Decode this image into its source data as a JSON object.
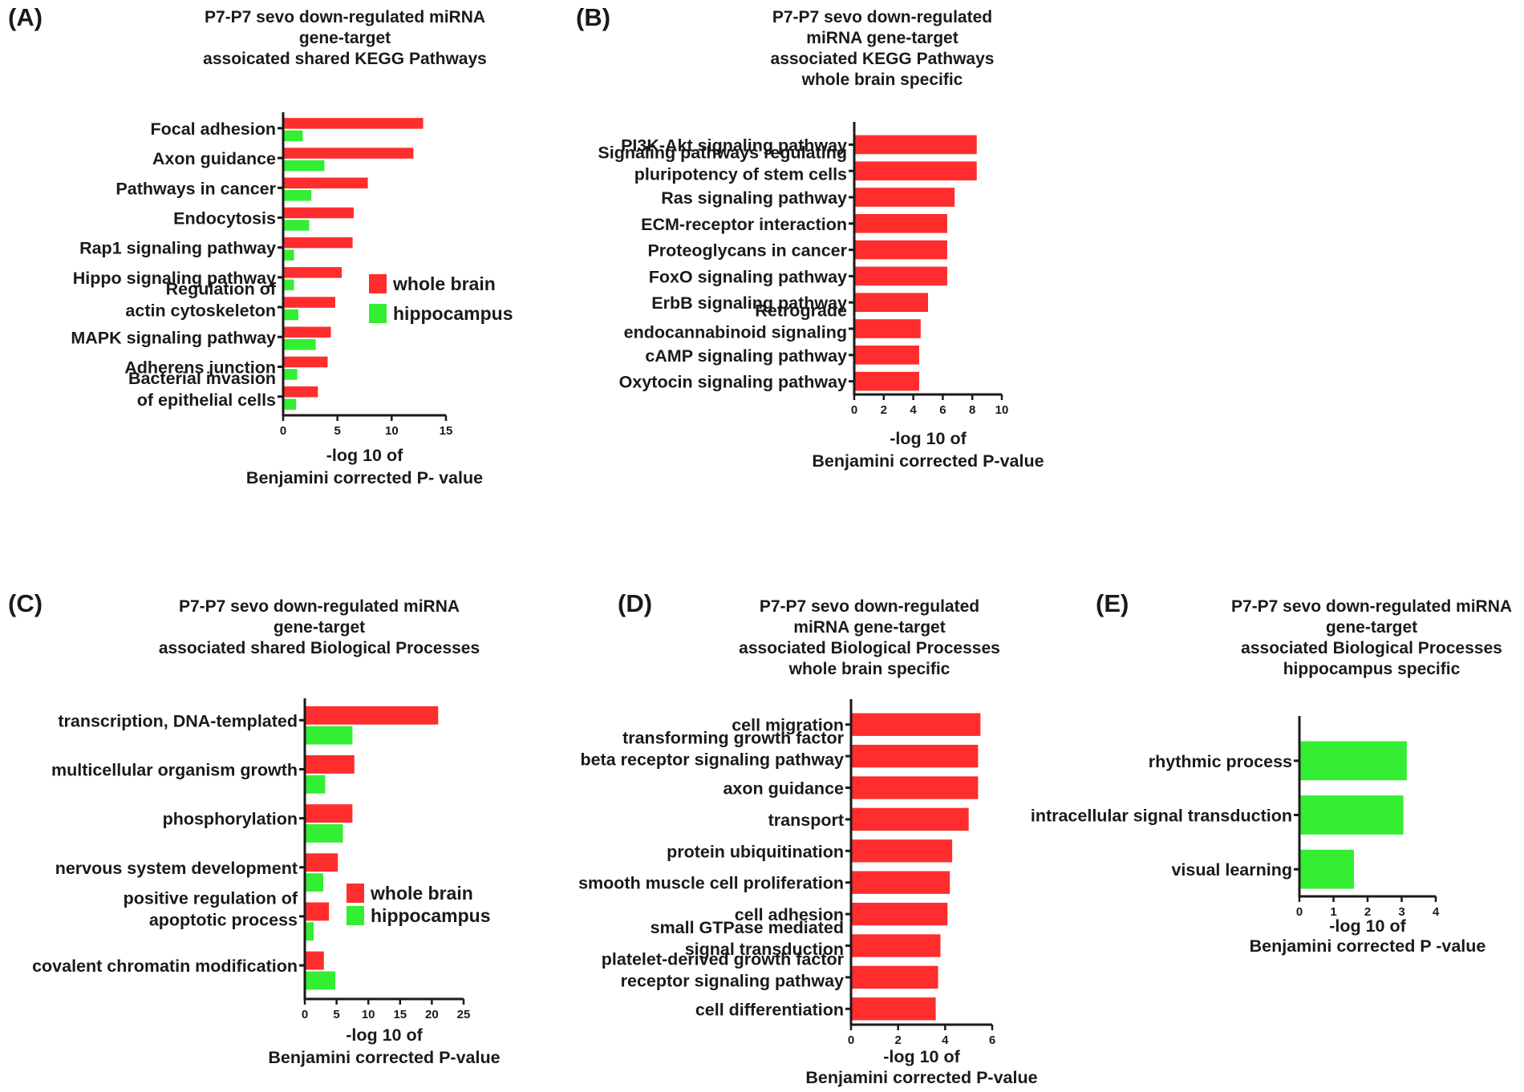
{
  "colors": {
    "whole_brain": "#ff2d2d",
    "hippocampus": "#33ee33",
    "axis": "#1a1a1a"
  },
  "chart_data": [
    {
      "panel": "(A)",
      "type": "bar",
      "orientation": "horizontal",
      "title": [
        "P7-P7 sevo down-regulated miRNA",
        "gene-target",
        "assoicated shared KEGG Pathways"
      ],
      "categories": [
        [
          "Focal adhesion"
        ],
        [
          "Axon guidance"
        ],
        [
          "Pathways in cancer"
        ],
        [
          "Endocytosis"
        ],
        [
          "Rap1 signaling pathway"
        ],
        [
          "Hippo signaling pathway"
        ],
        [
          "Regulation of",
          "actin cytoskeleton"
        ],
        [
          "MAPK signaling pathway"
        ],
        [
          "Adherens junction"
        ],
        [
          "Bacterial invasion",
          "of epithelial cells"
        ]
      ],
      "series": [
        {
          "name": "whole brain",
          "color": "#ff2d2d",
          "values": [
            12.9,
            12.0,
            7.8,
            6.5,
            6.4,
            5.4,
            4.8,
            4.4,
            4.1,
            3.2
          ]
        },
        {
          "name": "hippocampus",
          "color": "#33ee33",
          "values": [
            1.8,
            3.8,
            2.6,
            2.4,
            1.0,
            1.0,
            1.4,
            3.0,
            1.3,
            1.2
          ]
        }
      ],
      "xlim": [
        0,
        15
      ],
      "xticks": [
        "0",
        "5",
        "10",
        "15"
      ],
      "xlabel": [
        "-log 10 of",
        "Benjamini corrected P- value"
      ],
      "legend": [
        "whole brain",
        "hippocampus"
      ]
    },
    {
      "panel": "(B)",
      "type": "bar",
      "orientation": "horizontal",
      "title": [
        "P7-P7 sevo down-regulated",
        "miRNA gene-target",
        "associated KEGG Pathways",
        "whole brain specific"
      ],
      "categories": [
        [
          "PI3K-Akt signaling pathway"
        ],
        [
          "Signaling pathways regulating",
          "pluripotency of stem cells"
        ],
        [
          "Ras signaling pathway"
        ],
        [
          "ECM-receptor interaction"
        ],
        [
          "Proteoglycans in cancer"
        ],
        [
          "FoxO signaling pathway"
        ],
        [
          "ErbB signaling pathway"
        ],
        [
          "Retrograde",
          "endocannabinoid signaling"
        ],
        [
          "cAMP signaling pathway"
        ],
        [
          "Oxytocin signaling pathway"
        ]
      ],
      "series": [
        {
          "name": "whole brain",
          "color": "#ff2d2d",
          "values": [
            8.3,
            8.3,
            6.8,
            6.3,
            6.3,
            6.3,
            5.0,
            4.5,
            4.4,
            4.4
          ]
        }
      ],
      "xlim": [
        0,
        10
      ],
      "xticks": [
        "0",
        "2",
        "4",
        "6",
        "8",
        "10"
      ],
      "xlabel": [
        "-log 10 of",
        "Benjamini corrected P-value"
      ],
      "legend": []
    },
    {
      "panel": "(C)",
      "type": "bar",
      "orientation": "horizontal",
      "title": [
        "P7-P7  sevo down-regulated miRNA",
        "gene-target",
        "associated shared Biological Processes"
      ],
      "categories": [
        [
          "transcription, DNA-templated"
        ],
        [
          "multicellular organism growth"
        ],
        [
          "phosphorylation"
        ],
        [
          "nervous system development"
        ],
        [
          "positive regulation of",
          "apoptotic process"
        ],
        [
          "covalent chromatin modification"
        ]
      ],
      "series": [
        {
          "name": "whole brain",
          "color": "#ff2d2d",
          "values": [
            21.0,
            7.8,
            7.5,
            5.2,
            3.8,
            3.0
          ]
        },
        {
          "name": "hippocampus",
          "color": "#33ee33",
          "values": [
            7.5,
            3.2,
            6.0,
            2.9,
            1.4,
            4.8
          ]
        }
      ],
      "xlim": [
        0,
        25
      ],
      "xticks": [
        "0",
        "5",
        "10",
        "15",
        "20",
        "25"
      ],
      "xlabel": [
        "-log 10 of",
        "Benjamini corrected P-value"
      ],
      "legend": [
        "whole brain",
        "hippocampus"
      ]
    },
    {
      "panel": "(D)",
      "type": "bar",
      "orientation": "horizontal",
      "title": [
        "P7-P7 sevo down-regulated",
        "miRNA gene-target",
        "associated Biological Processes",
        "whole brain specific"
      ],
      "categories": [
        [
          "cell migration"
        ],
        [
          "transforming growth factor",
          "beta receptor signaling pathway"
        ],
        [
          "axon guidance"
        ],
        [
          "transport"
        ],
        [
          "protein ubiquitination"
        ],
        [
          "smooth muscle cell proliferation"
        ],
        [
          "cell adhesion"
        ],
        [
          "small GTPase mediated",
          "signal transduction"
        ],
        [
          "platelet-derived growth factor",
          "receptor signaling pathway"
        ],
        [
          "cell differentiation"
        ]
      ],
      "series": [
        {
          "name": "whole brain",
          "color": "#ff2d2d",
          "values": [
            5.5,
            5.4,
            5.4,
            5.0,
            4.3,
            4.2,
            4.1,
            3.8,
            3.7,
            3.6
          ]
        }
      ],
      "xlim": [
        0,
        6
      ],
      "xticks": [
        "0",
        "2",
        "4",
        "6"
      ],
      "xlabel": [
        "-log 10 of",
        "Benjamini corrected P-value"
      ],
      "legend": []
    },
    {
      "panel": "(E)",
      "type": "bar",
      "orientation": "horizontal",
      "title": [
        "P7-P7  sevo down-regulated miRNA",
        "gene-target",
        "associated Biological Processes",
        "hippocampus specific"
      ],
      "categories": [
        [
          "rhythmic process"
        ],
        [
          "intracellular signal transduction"
        ],
        [
          "visual learning"
        ]
      ],
      "series": [
        {
          "name": "hippocampus",
          "color": "#33ee33",
          "values": [
            3.15,
            3.05,
            1.6
          ]
        }
      ],
      "xlim": [
        0,
        4
      ],
      "xticks": [
        "0",
        "1",
        "2",
        "3",
        "4"
      ],
      "xlabel": [
        "-log 10 of",
        "Benjamini corrected P -value"
      ],
      "legend": []
    }
  ]
}
